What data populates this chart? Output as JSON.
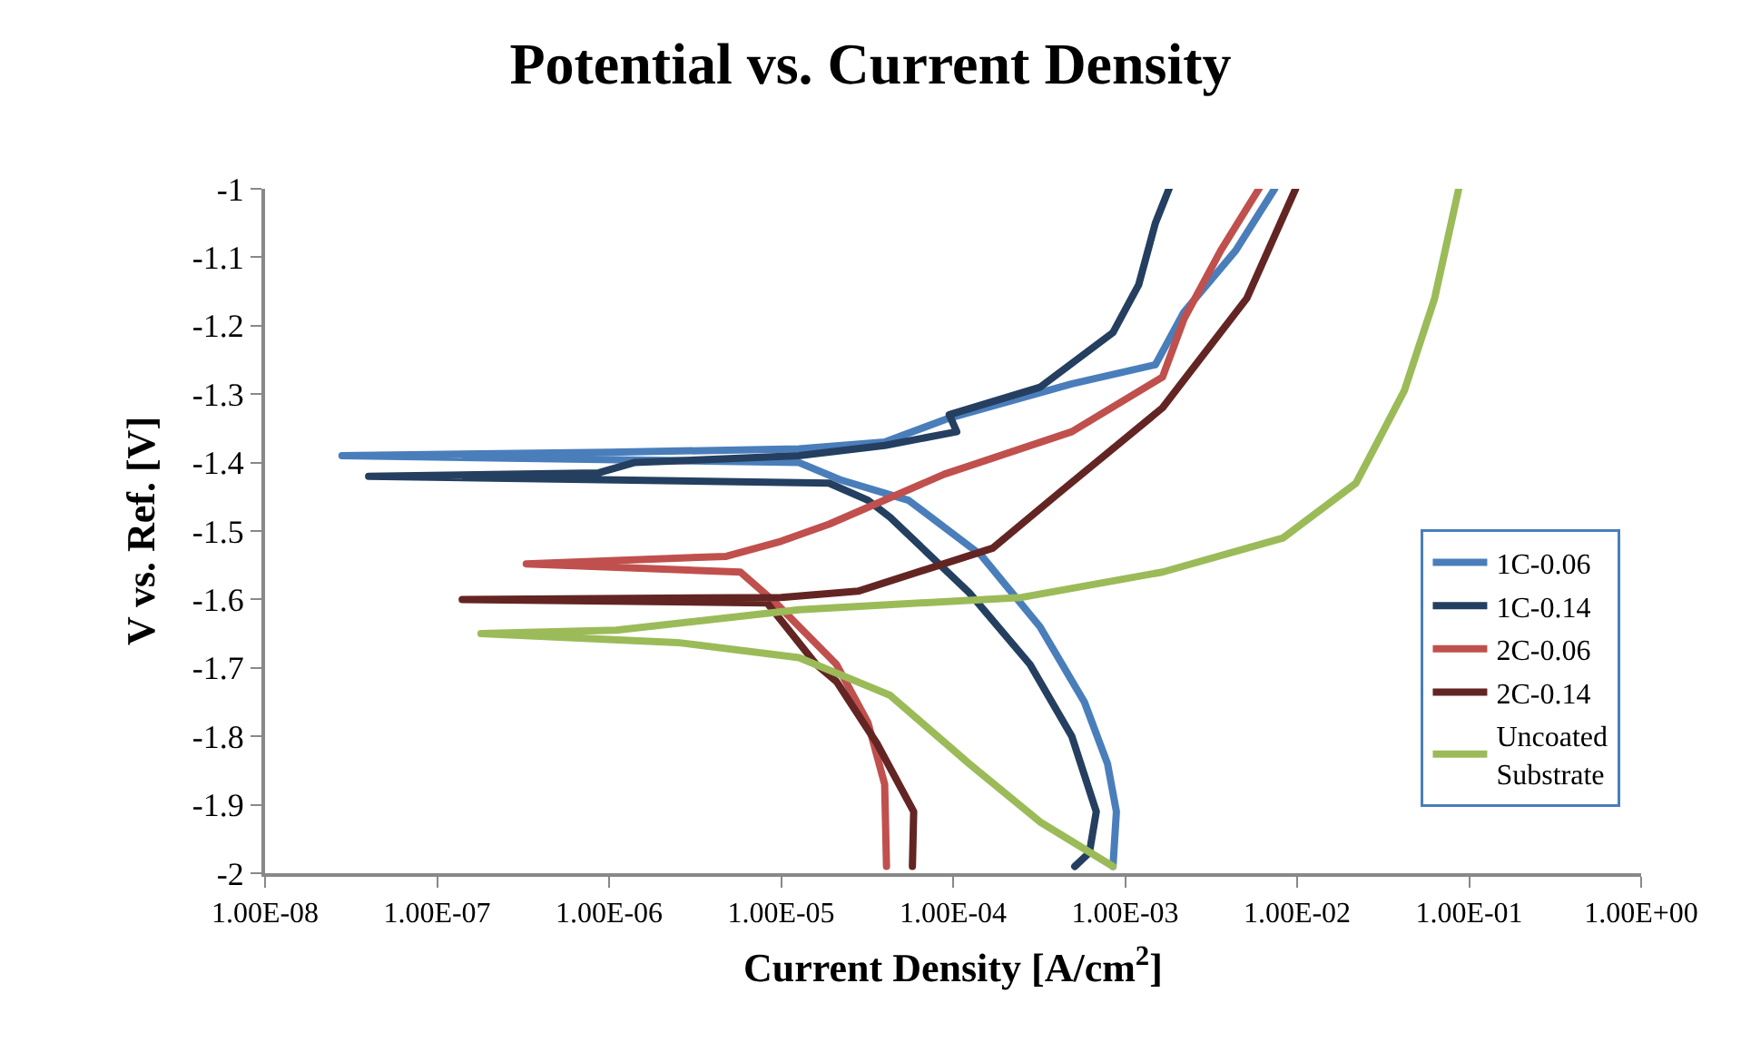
{
  "chart_data": {
    "type": "line",
    "title": "Potential vs. Current Density",
    "xlabel": "Current Density [A/cm$^{2}$]",
    "ylabel": "V vs. Ref. [V]",
    "log": "x",
    "grid": false,
    "legend": "right",
    "marker": "none",
    "line_style": "solid",
    "xlim": [
      1e-08,
      1
    ],
    "xticks": [
      {
        "value": 1e-08,
        "label": "1.00E-08"
      },
      {
        "value": 1e-07,
        "label": "1.00E-07"
      },
      {
        "value": 1e-06,
        "label": "1.00E-06"
      },
      {
        "value": 1e-05,
        "label": "1.00E-05"
      },
      {
        "value": 0.0001,
        "label": "1.00E-04"
      },
      {
        "value": 0.001,
        "label": "1.00E-03"
      },
      {
        "value": 0.01,
        "label": "1.00E-02"
      },
      {
        "value": 0.1,
        "label": "1.00E-01"
      },
      {
        "value": 1,
        "label": "1.00E+00"
      }
    ],
    "ylim": [
      -2,
      -1
    ],
    "yticks": [
      -2,
      -1.9,
      -1.8,
      -1.7,
      -1.6,
      -1.5,
      -1.4,
      -1.3,
      -1.2,
      -1.1,
      -1
    ],
    "series": [
      {
        "name": "1C-0.06",
        "color": "#4a7ebb",
        "x": [
          0.00085,
          0.00089,
          0.00079,
          0.00058,
          0.00032,
          0.000145,
          5.5e-05,
          2.2e-05,
          1.27e-05,
          2.8e-08,
          1e-06,
          1.27e-05,
          4e-05,
          9.5e-05,
          0.00049,
          0.0015,
          0.0022,
          0.0044,
          0.0074
        ],
        "values": [
          -1.99,
          -1.91,
          -1.84,
          -1.75,
          -1.64,
          -1.535,
          -1.455,
          -1.425,
          -1.4,
          -1.39,
          -1.385,
          -1.38,
          -1.37,
          -1.335,
          -1.285,
          -1.257,
          -1.18,
          -1.09,
          -1
        ]
      },
      {
        "name": "1C-0.14",
        "color": "#243f60",
        "x": [
          0.00051,
          0.00062,
          0.00068,
          0.00049,
          0.00028,
          0.000124,
          4.3e-05,
          3.2e-05,
          1.9e-05,
          4e-08,
          8.7e-07,
          1.4e-06,
          1.27e-05,
          4e-05,
          0.000105,
          9.5e-05,
          0.00032,
          0.00085,
          0.0012,
          0.0015,
          0.0018
        ],
        "values": [
          -1.99,
          -1.97,
          -1.91,
          -1.8,
          -1.695,
          -1.59,
          -1.48,
          -1.455,
          -1.43,
          -1.42,
          -1.415,
          -1.4,
          -1.39,
          -1.375,
          -1.355,
          -1.33,
          -1.29,
          -1.21,
          -1.14,
          -1.05,
          -1
        ]
      },
      {
        "name": "2C-0.06",
        "color": "#c0504d",
        "x": [
          4.1e-05,
          4e-05,
          3.2e-05,
          2.1e-05,
          9.3e-06,
          5.8e-06,
          3.3e-07,
          4.8e-06,
          1e-05,
          1.9e-05,
          8.9e-05,
          0.00049,
          0.00165,
          0.0022,
          0.0036,
          0.006
        ],
        "values": [
          -1.99,
          -1.87,
          -1.78,
          -1.695,
          -1.605,
          -1.56,
          -1.548,
          -1.537,
          -1.515,
          -1.49,
          -1.417,
          -1.355,
          -1.275,
          -1.19,
          -1.09,
          -1
        ]
      },
      {
        "name": "2C-0.14",
        "color": "#632523",
        "x": [
          5.8e-05,
          5.9e-05,
          3.6e-05,
          2.1e-05,
          1.6e-05,
          8.3e-06,
          1.4e-07,
          1e-05,
          2.8e-05,
          0.00017,
          0.00041,
          0.00165,
          0.0051,
          0.0098
        ],
        "values": [
          -1.99,
          -1.91,
          -1.81,
          -1.72,
          -1.695,
          -1.605,
          -1.6,
          -1.597,
          -1.588,
          -1.525,
          -1.445,
          -1.32,
          -1.16,
          -1
        ]
      },
      {
        "name": "Uncoated Substrate",
        "color": "#9bbb59",
        "x": [
          0.00085,
          0.00032,
          0.000124,
          4.3e-05,
          1.27e-05,
          2.5e-06,
          1.8e-07,
          1.1e-06,
          1.27e-05,
          0.00025,
          0.00165,
          0.0083,
          0.022,
          0.042,
          0.063,
          0.087
        ],
        "values": [
          -1.99,
          -1.925,
          -1.84,
          -1.74,
          -1.685,
          -1.663,
          -1.65,
          -1.645,
          -1.615,
          -1.597,
          -1.56,
          -1.51,
          -1.43,
          -1.295,
          -1.16,
          -1
        ]
      }
    ]
  }
}
